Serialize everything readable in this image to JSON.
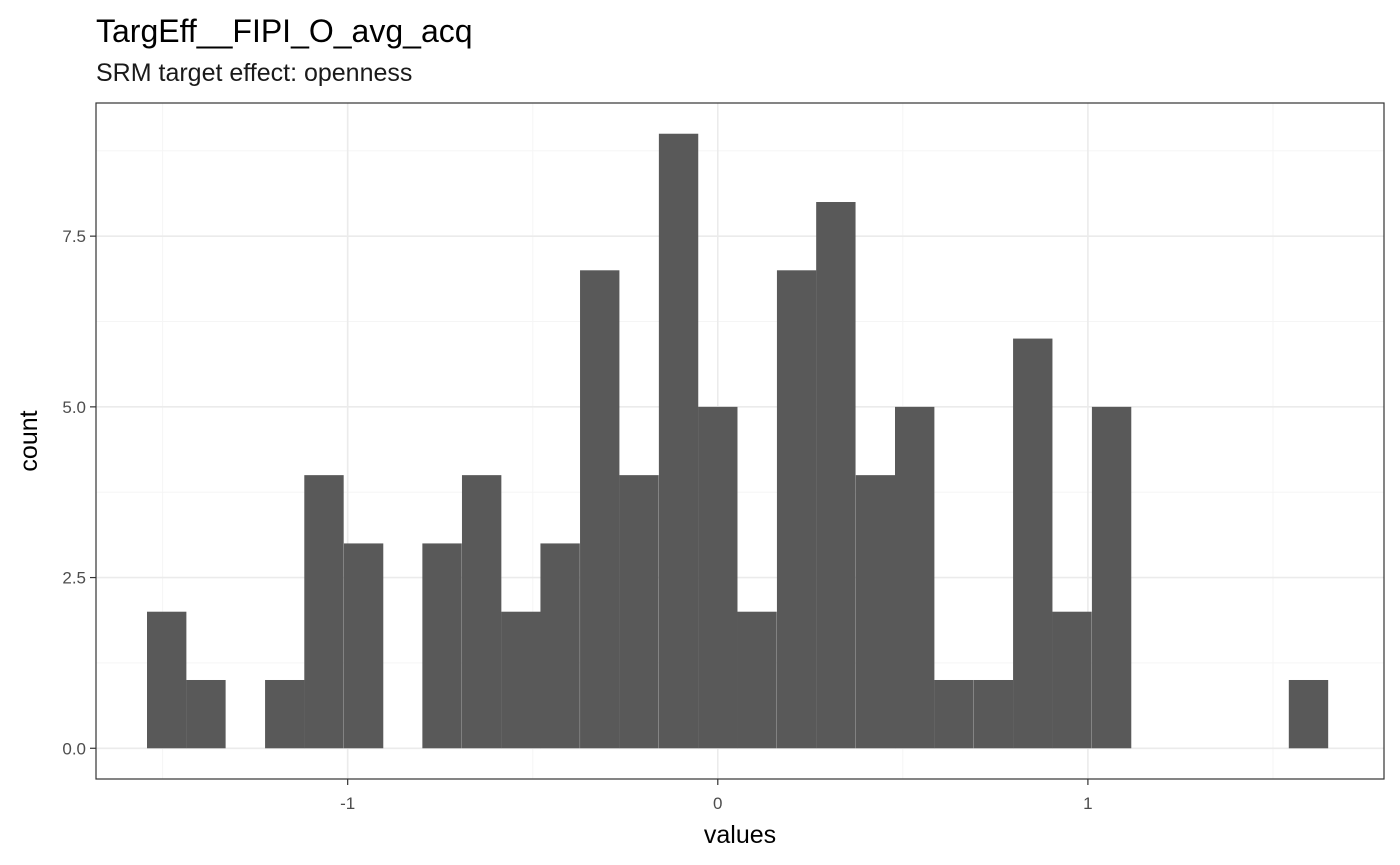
{
  "chart_data": {
    "type": "bar",
    "title": "TargEff__FIPI_O_avg_acq",
    "subtitle": "SRM target effect: openness",
    "xlabel": "values",
    "ylabel": "count",
    "xlim": [
      -1.68,
      1.8
    ],
    "ylim": [
      -0.45,
      9.45
    ],
    "x_ticks": [
      -1,
      0,
      1
    ],
    "x_tick_labels": [
      "-1",
      "0",
      "1"
    ],
    "y_ticks": [
      0,
      2.5,
      5,
      7.5
    ],
    "y_tick_labels": [
      "0.0",
      "2.5",
      "5.0",
      "7.5"
    ],
    "grid": true,
    "bin_width": 0.1064,
    "bin_centers": [
      -1.489,
      -1.383,
      -1.277,
      -1.17,
      -1.064,
      -0.957,
      -0.851,
      -0.745,
      -0.638,
      -0.532,
      -0.426,
      -0.319,
      -0.213,
      -0.106,
      0.0,
      0.106,
      0.213,
      0.319,
      0.426,
      0.532,
      0.638,
      0.745,
      0.851,
      0.957,
      1.064,
      1.17,
      1.277,
      1.383,
      1.489,
      1.596
    ],
    "values": [
      2,
      1,
      0,
      1,
      4,
      3,
      0,
      3,
      4,
      2,
      3,
      7,
      4,
      9,
      5,
      2,
      7,
      8,
      4,
      5,
      1,
      1,
      6,
      2,
      5,
      0,
      0,
      0,
      0,
      1
    ],
    "colors": {
      "bar": "#595959",
      "grid_major": "#ebebeb",
      "grid_minor": "#f5f5f5",
      "border": "#333333",
      "tick": "#333333"
    }
  }
}
